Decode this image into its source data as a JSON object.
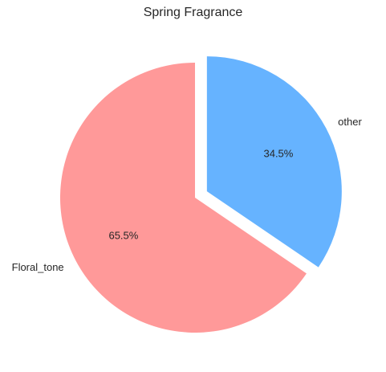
{
  "chart_data": {
    "type": "pie",
    "title": "Spring Fragrance",
    "slices": [
      {
        "label": "Floral_tone",
        "value": 65.5,
        "pct_label": "65.5%",
        "color": "#ff9999",
        "exploded": false
      },
      {
        "label": "other",
        "value": 34.5,
        "pct_label": "34.5%",
        "color": "#66b3ff",
        "exploded": true
      }
    ],
    "start_angle_deg": 90,
    "direction": "counterclockwise"
  }
}
